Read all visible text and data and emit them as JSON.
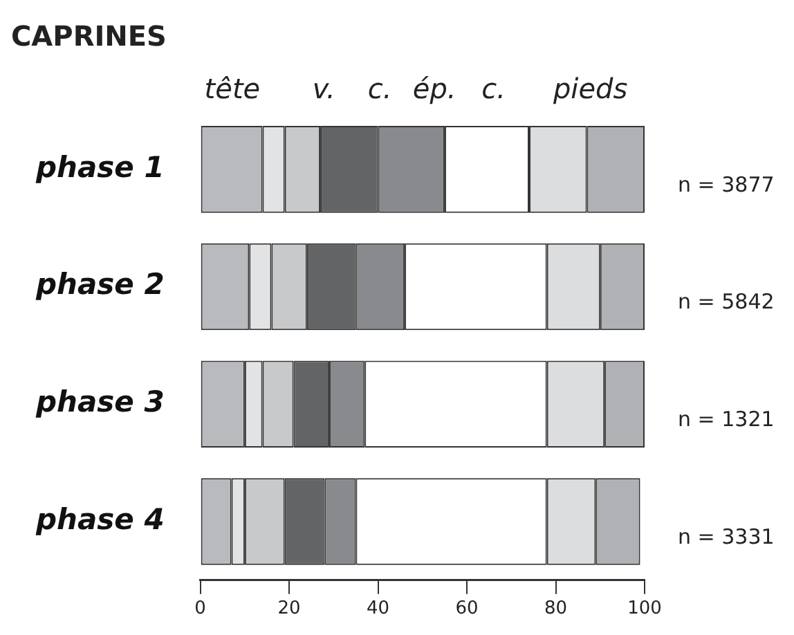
{
  "chart_data": {
    "type": "bar",
    "orientation": "horizontal",
    "stacked": true,
    "title": "CAPRINES",
    "categories": [
      "phase 1",
      "phase 2",
      "phase 3",
      "phase 4"
    ],
    "series": [
      {
        "color": "#b9babd",
        "values": [
          14,
          11,
          10,
          7
        ]
      },
      {
        "color": "#e2e3e5",
        "values": [
          5,
          5,
          4,
          3
        ]
      },
      {
        "color": "#c8c9cb",
        "values": [
          8,
          8,
          7,
          9
        ]
      },
      {
        "color": "#636466",
        "values": [
          13,
          11,
          8,
          9
        ]
      },
      {
        "color": "#898a8d",
        "values": [
          15,
          11,
          8,
          7
        ]
      },
      {
        "color": "#ffffff",
        "values": [
          19,
          32,
          41,
          43
        ]
      },
      {
        "color": "#dcdddf",
        "values": [
          13,
          12,
          13,
          11
        ]
      },
      {
        "color": "#b0b1b4",
        "values": [
          13,
          10,
          9,
          10
        ]
      }
    ],
    "xlim": [
      0,
      100
    ],
    "xticks": [
      0,
      20,
      40,
      60,
      80,
      100
    ],
    "grid": false,
    "legend": false,
    "annotations": [
      "tête",
      "v.",
      "c.",
      "ép.",
      "c.",
      "pieds",
      "n = 3877",
      "n = 5842",
      "n = 1321",
      "n = 3331"
    ]
  }
}
